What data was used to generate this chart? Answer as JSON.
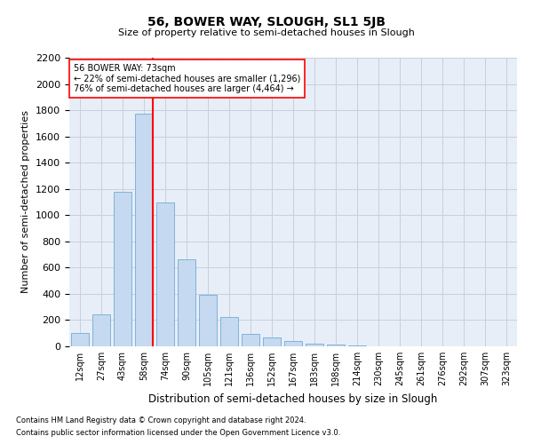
{
  "title1": "56, BOWER WAY, SLOUGH, SL1 5JB",
  "title2": "Size of property relative to semi-detached houses in Slough",
  "xlabel": "Distribution of semi-detached houses by size in Slough",
  "ylabel": "Number of semi-detached properties",
  "footnote1": "Contains HM Land Registry data © Crown copyright and database right 2024.",
  "footnote2": "Contains public sector information licensed under the Open Government Licence v3.0.",
  "annotation_line1": "56 BOWER WAY: 73sqm",
  "annotation_line2": "← 22% of semi-detached houses are smaller (1,296)",
  "annotation_line3": "76% of semi-detached houses are larger (4,464) →",
  "bar_labels": [
    "12sqm",
    "27sqm",
    "43sqm",
    "58sqm",
    "74sqm",
    "90sqm",
    "105sqm",
    "121sqm",
    "136sqm",
    "152sqm",
    "167sqm",
    "183sqm",
    "198sqm",
    "214sqm",
    "230sqm",
    "245sqm",
    "261sqm",
    "276sqm",
    "292sqm",
    "307sqm",
    "323sqm"
  ],
  "bar_values": [
    100,
    245,
    1175,
    1775,
    1095,
    665,
    395,
    225,
    95,
    70,
    40,
    20,
    15,
    5,
    0,
    0,
    0,
    0,
    0,
    0,
    0
  ],
  "bar_color": "#c5d9f0",
  "bar_edge_color": "#7eb3d8",
  "vline_index": 3,
  "vline_color": "red",
  "ylim_max": 2200,
  "yticks": [
    0,
    200,
    400,
    600,
    800,
    1000,
    1200,
    1400,
    1600,
    1800,
    2000,
    2200
  ],
  "grid_color": "#c8d0dc",
  "background_color": "#e8eef8",
  "annotation_box_color": "white",
  "annotation_box_edge": "red"
}
